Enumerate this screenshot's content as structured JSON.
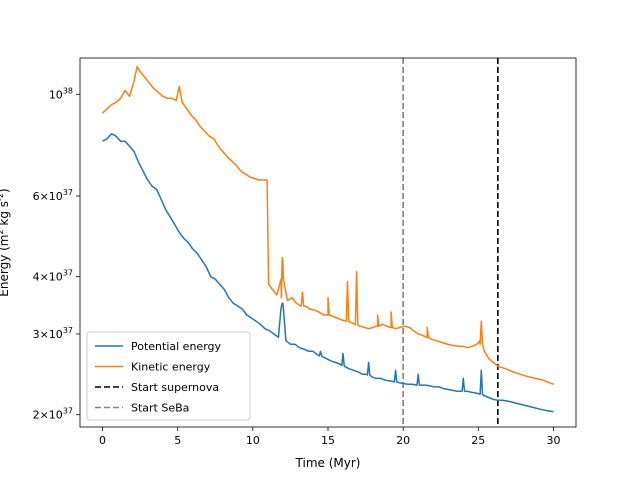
{
  "chart_data": {
    "type": "line",
    "xlabel": "Time (Myr)",
    "ylabel": "Energy (m^2 kg s^-2)",
    "xlim": [
      -1.5,
      31.5
    ],
    "ylim": [
      1.88e+37,
      1.2e+38
    ],
    "yscale": "log",
    "grid": false,
    "legend_position": "lower-left",
    "x_ticks": [
      {
        "value": 0,
        "label": "0"
      },
      {
        "value": 5,
        "label": "5"
      },
      {
        "value": 10,
        "label": "10"
      },
      {
        "value": 15,
        "label": "15"
      },
      {
        "value": 20,
        "label": "20"
      },
      {
        "value": 25,
        "label": "25"
      },
      {
        "value": 30,
        "label": "30"
      }
    ],
    "y_ticks": [
      {
        "value": 2e+37,
        "mant": "2",
        "exp": "37"
      },
      {
        "value": 3e+37,
        "mant": "3",
        "exp": "37"
      },
      {
        "value": 4e+37,
        "mant": "4",
        "exp": "37"
      },
      {
        "value": 6e+37,
        "mant": "6",
        "exp": "37"
      },
      {
        "value": 1e+38,
        "mant": "10",
        "exp": "38"
      }
    ],
    "series": [
      {
        "name": "Potential energy",
        "color": "#1f77b4",
        "style": "solid",
        "x": [
          0,
          0.3,
          0.6,
          0.9,
          1.2,
          1.5,
          1.8,
          2.1,
          2.4,
          2.7,
          3.0,
          3.3,
          3.6,
          3.9,
          4.2,
          4.5,
          4.8,
          5.1,
          5.4,
          5.7,
          6.0,
          6.3,
          6.6,
          6.9,
          7.2,
          7.5,
          7.8,
          8.1,
          8.4,
          8.7,
          9.0,
          9.3,
          9.6,
          9.9,
          10.2,
          10.5,
          10.8,
          11.1,
          11.4,
          11.7,
          12.0,
          12.2,
          12.5,
          12.8,
          13.1,
          13.4,
          13.7,
          14.0,
          14.3,
          14.6,
          14.9,
          15.2,
          15.5,
          15.8,
          16.1,
          16.4,
          16.7,
          17.0,
          17.3,
          17.6,
          17.9,
          18.2,
          18.5,
          18.8,
          19.1,
          19.4,
          19.7,
          20.0,
          20.3,
          20.6,
          20.9,
          21.2,
          21.5,
          21.8,
          22.1,
          22.4,
          22.7,
          23.0,
          23.3,
          23.6,
          23.9,
          24.2,
          24.5,
          24.8,
          25.1,
          25.4,
          25.7,
          26.0,
          26.3,
          26.6,
          27.0,
          27.5,
          28.0,
          28.5,
          29.0,
          29.3,
          29.6,
          30.0
        ],
        "values": [
          7.9e+37,
          8e+37,
          8.2e+37,
          8.1e+37,
          7.9e+37,
          7.9e+37,
          7.7e+37,
          7.5e+37,
          7.1e+37,
          6.8e+37,
          6.5e+37,
          6.3e+37,
          6.2e+37,
          5.9e+37,
          5.6e+37,
          5.4e+37,
          5.2e+37,
          5e+37,
          4.85e+37,
          4.75e+37,
          4.6e+37,
          4.5e+37,
          4.35e+37,
          4.2e+37,
          4e+37,
          3.95e+37,
          3.85e+37,
          3.75e+37,
          3.6e+37,
          3.5e+37,
          3.45e+37,
          3.4e+37,
          3.3e+37,
          3.25e+37,
          3.2e+37,
          3.15e+37,
          3.08e+37,
          3.05e+37,
          3e+37,
          2.95e+37,
          3.5e+37,
          2.9e+37,
          2.85e+37,
          2.85e+37,
          2.8e+37,
          2.78e+37,
          2.75e+37,
          2.75e+37,
          2.7e+37,
          2.68e+37,
          2.65e+37,
          2.62e+37,
          2.6e+37,
          2.58e+37,
          2.55e+37,
          2.52e+37,
          2.5e+37,
          2.48e+37,
          2.45e+37,
          2.45e+37,
          2.42e+37,
          2.4e+37,
          2.4e+37,
          2.38e+37,
          2.37e+37,
          2.36e+37,
          2.35e+37,
          2.34e+37,
          2.33e+37,
          2.33e+37,
          2.32e+37,
          2.32e+37,
          2.32e+37,
          2.31e+37,
          2.3e+37,
          2.3e+37,
          2.28e+37,
          2.27e+37,
          2.26e+37,
          2.25e+37,
          2.25e+37,
          2.25e+37,
          2.24e+37,
          2.23e+37,
          2.22e+37,
          2.2e+37,
          2.18e+37,
          2.16e+37,
          2.15e+37,
          2.15e+37,
          2.14e+37,
          2.12e+37,
          2.1e+37,
          2.08e+37,
          2.06e+37,
          2.05e+37,
          2.04e+37,
          2.03e+37
        ]
      },
      {
        "name": "Kinetic energy",
        "color": "#ff7f0e",
        "style": "solid",
        "x": [
          0,
          0.3,
          0.6,
          0.9,
          1.2,
          1.5,
          1.8,
          2.1,
          2.3,
          2.5,
          2.8,
          3.1,
          3.4,
          3.7,
          4.0,
          4.3,
          4.6,
          4.9,
          5.1,
          5.3,
          5.6,
          5.9,
          6.2,
          6.5,
          6.8,
          7.1,
          7.4,
          7.7,
          8.0,
          8.3,
          8.6,
          8.9,
          9.2,
          9.5,
          9.8,
          10.1,
          10.4,
          10.7,
          10.95,
          11.05,
          11.3,
          11.6,
          11.9,
          12.0,
          12.3,
          12.6,
          12.9,
          13.2,
          13.5,
          13.8,
          14.1,
          14.4,
          14.7,
          15.0,
          15.3,
          15.6,
          15.9,
          16.2,
          16.5,
          16.8,
          17.1,
          17.4,
          17.7,
          18.0,
          18.3,
          18.6,
          18.9,
          19.2,
          19.5,
          19.8,
          20.1,
          20.4,
          20.7,
          21.0,
          21.3,
          21.6,
          21.9,
          22.2,
          22.5,
          22.8,
          23.1,
          23.4,
          23.7,
          24.0,
          24.3,
          24.6,
          24.9,
          25.1,
          25.4,
          25.7,
          26.0,
          26.3,
          26.8,
          27.3,
          27.8,
          28.3,
          28.8,
          29.3,
          29.7,
          30.0
        ],
        "values": [
          9.1e+37,
          9.3e+37,
          9.5e+37,
          9.6e+37,
          9.8e+37,
          1.02e+38,
          9.9e+37,
          1.07e+38,
          1.15e+38,
          1.12e+38,
          1.09e+38,
          1.06e+38,
          1.03e+38,
          1.01e+38,
          9.9e+37,
          9.8e+37,
          9.8e+37,
          9.7e+37,
          1.04e+38,
          9.6e+37,
          9.3e+37,
          9e+37,
          8.8e+37,
          8.5e+37,
          8.3e+37,
          8.1e+37,
          8e+37,
          7.7e+37,
          7.5e+37,
          7.3e+37,
          7.15e+37,
          7e+37,
          6.8e+37,
          6.7e+37,
          6.6e+37,
          6.55e+37,
          6.5e+37,
          6.5e+37,
          6.5e+37,
          3.85e+37,
          3.75e+37,
          3.65e+37,
          3.6e+37,
          4.3e+37,
          3.55e+37,
          3.6e+37,
          3.5e+37,
          3.45e+37,
          3.45e+37,
          3.4e+37,
          3.38e+37,
          3.35e+37,
          3.3e+37,
          3.3e+37,
          3.28e+37,
          3.25e+37,
          3.22e+37,
          3.2e+37,
          3.18e+37,
          3.15e+37,
          3.12e+37,
          3.1e+37,
          3.08e+37,
          3.1e+37,
          3.12e+37,
          3.15e+37,
          3.12e+37,
          3.1e+37,
          3.08e+37,
          3.1e+37,
          3.12e+37,
          3.1e+37,
          3.05e+37,
          3e+37,
          2.98e+37,
          2.95e+37,
          2.92e+37,
          2.9e+37,
          2.88e+37,
          2.86e+37,
          2.84e+37,
          2.83e+37,
          2.82e+37,
          2.82e+37,
          2.8e+37,
          2.82e+37,
          2.85e+37,
          2.9e+37,
          2.75e+37,
          2.65e+37,
          2.6e+37,
          2.55e+37,
          2.52e+37,
          2.48e+37,
          2.45e+37,
          2.42e+37,
          2.4e+37,
          2.38e+37,
          2.35e+37,
          2.33e+37
        ]
      },
      {
        "name": "Start supernova",
        "color": "#000000",
        "style": "dashed",
        "x_value": 26.3
      },
      {
        "name": "Start SeBa",
        "color": "#808080",
        "style": "dashed",
        "x_value": 20.0
      }
    ],
    "spikes": {
      "Potential energy": [
        [
          11.95,
          3.5e+37
        ],
        [
          14.5,
          2.75e+37
        ],
        [
          16.0,
          2.72e+37
        ],
        [
          17.7,
          2.6e+37
        ],
        [
          19.5,
          2.5e+37
        ],
        [
          21.0,
          2.45e+37
        ],
        [
          24.0,
          2.4e+37
        ],
        [
          25.2,
          2.5e+37
        ]
      ],
      "Kinetic energy": [
        [
          11.95,
          4.4e+37
        ],
        [
          13.3,
          3.7e+37
        ],
        [
          15.0,
          3.6e+37
        ],
        [
          16.3,
          3.9e+37
        ],
        [
          16.9,
          4.1e+37
        ],
        [
          18.3,
          3.3e+37
        ],
        [
          19.2,
          3.35e+37
        ],
        [
          21.6,
          3.1e+37
        ],
        [
          25.2,
          3.2e+37
        ]
      ]
    }
  }
}
